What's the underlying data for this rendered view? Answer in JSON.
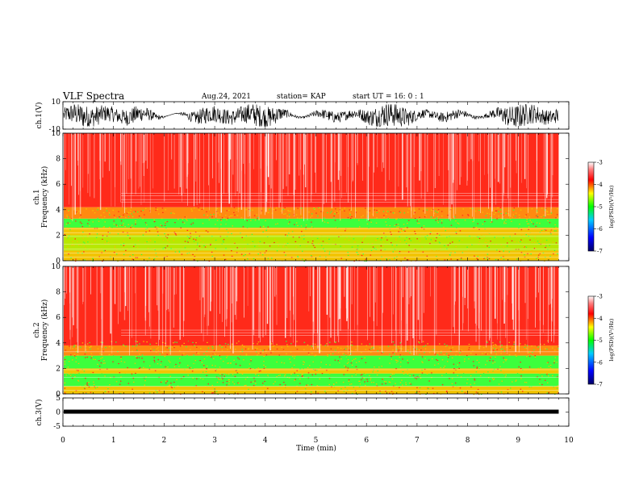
{
  "header": {
    "title": "VLF Spectra",
    "date": "Aug.24, 2021",
    "station": "station= KAP",
    "start": "start  UT =   16: 0  : 1"
  },
  "colors": {
    "spec_red": "#ff2a1a",
    "spec_yellow": "#f2c400",
    "spec_green": "#3cff3c",
    "spec_white": "#ffffff",
    "trace": "#000000"
  },
  "chart_data": [
    {
      "id": "ch1-waveform",
      "type": "line",
      "ylabel": "ch.1(V)",
      "ylim": [
        -10,
        10
      ],
      "yticks": [
        "10",
        "-10"
      ],
      "xlim": [
        0,
        10
      ],
      "description_values": {
        "amplitude_envelope": [
          -8,
          8
        ],
        "data_end_min": 9.8
      }
    },
    {
      "id": "ch1-spectrogram",
      "type": "heatmap",
      "ylabel": "ch.1",
      "ylabel2": "Frequency (kHz)",
      "ylim": [
        0,
        10
      ],
      "yticks": [
        "0",
        "2",
        "4",
        "6",
        "8",
        "10"
      ],
      "xlim": [
        0,
        10
      ],
      "data_end_min": 9.8,
      "bands_khz": [
        {
          "range": [
            0,
            0.8
          ],
          "level": "yellow"
        },
        {
          "range": [
            0.8,
            2.0
          ],
          "level": "yellow-green"
        },
        {
          "range": [
            2.0,
            2.6
          ],
          "level": "yellow"
        },
        {
          "range": [
            2.6,
            3.3
          ],
          "level": "green"
        },
        {
          "range": [
            3.3,
            4.2
          ],
          "level": "yellow-red"
        },
        {
          "range": [
            4.2,
            10
          ],
          "level": "red"
        }
      ],
      "colorbar": {
        "label": "log(PSD)(V²/Hz)",
        "ticks": [
          "-3",
          "-4",
          "-5",
          "-6",
          "-7"
        ],
        "range": [
          -7,
          -3
        ]
      }
    },
    {
      "id": "ch2-spectrogram",
      "type": "heatmap",
      "ylabel": "ch.2",
      "ylabel2": "Frequency (kHz)",
      "ylim": [
        0,
        10
      ],
      "yticks": [
        "0",
        "2",
        "4",
        "6",
        "8",
        "10"
      ],
      "xlim": [
        0,
        10
      ],
      "data_end_min": 9.8,
      "bands_khz": [
        {
          "range": [
            0,
            0.6
          ],
          "level": "yellow"
        },
        {
          "range": [
            0.6,
            1.6
          ],
          "level": "green"
        },
        {
          "range": [
            1.6,
            2.0
          ],
          "level": "yellow"
        },
        {
          "range": [
            2.0,
            3.0
          ],
          "level": "green"
        },
        {
          "range": [
            3.0,
            3.8
          ],
          "level": "yellow-red"
        },
        {
          "range": [
            3.8,
            10
          ],
          "level": "red"
        }
      ],
      "colorbar": {
        "label": "log(PSD)(V²/Hz)",
        "ticks": [
          "-3",
          "-4",
          "-5",
          "-6",
          "-7"
        ],
        "range": [
          -7,
          -3
        ]
      }
    },
    {
      "id": "ch3-waveform",
      "type": "line",
      "ylabel": "ch.3(V)",
      "ylim": [
        -5,
        5
      ],
      "yticks": [
        "5",
        "0",
        "-5"
      ],
      "xlim": [
        0,
        10
      ],
      "description_values": {
        "level_v": 0,
        "data_end_min": 9.8
      }
    }
  ],
  "xaxis": {
    "label": "Time (min)",
    "ticks": [
      "0",
      "1",
      "2",
      "3",
      "4",
      "5",
      "6",
      "7",
      "8",
      "9",
      "10"
    ]
  }
}
